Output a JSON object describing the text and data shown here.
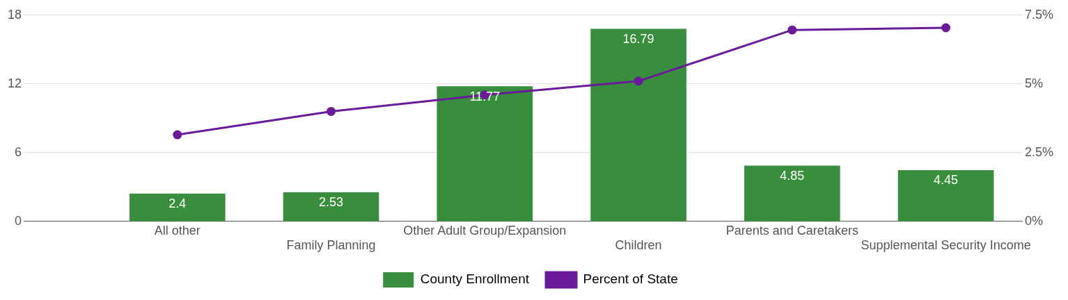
{
  "chart_data": {
    "type": "bar",
    "categories": [
      "All other",
      "Family Planning",
      "Other Adult Group/Expansion",
      "Children",
      "Parents and Caretakers",
      "Supplemental Security Income"
    ],
    "series": [
      {
        "name": "County Enrollment",
        "color": "#388e3c",
        "values": [
          2.4,
          2.53,
          11.77,
          16.79,
          4.85,
          4.45
        ],
        "value_labels": [
          "2.4",
          "2.53",
          "11.77",
          "16.79",
          "4.85",
          "4.45"
        ]
      },
      {
        "name": "Percent of State",
        "type": "line",
        "axis": "y2",
        "color": "#6a1b9a",
        "values": [
          3.15,
          4.0,
          4.6,
          5.1,
          6.96,
          7.04
        ],
        "marker": "circle"
      }
    ],
    "ylim": [
      0,
      18
    ],
    "yticks": [
      0,
      6,
      12,
      18
    ],
    "y2lim": [
      0,
      7.5
    ],
    "y2ticks": [
      {
        "value": 0,
        "label": "0%"
      },
      {
        "value": 2.5,
        "label": "2.5%"
      },
      {
        "value": 5,
        "label": "5%"
      },
      {
        "value": 7.5,
        "label": "7.5%"
      }
    ],
    "grid": "y",
    "legend": "bottom"
  }
}
